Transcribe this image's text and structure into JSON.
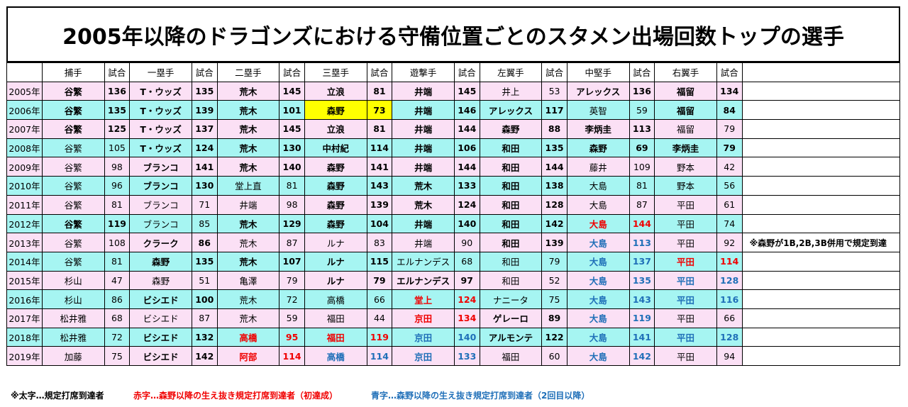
{
  "title": "2005年以降のドラゴンズにおける守備位置ごとのスタメン出場回数トップの選手",
  "headers": [
    "",
    "捕手",
    "試合",
    "一塁手",
    "試合",
    "二塁手",
    "試合",
    "三塁手",
    "試合",
    "遊撃手",
    "試合",
    "左翼手",
    "試合",
    "中堅手",
    "試合",
    "右翼手",
    "試合",
    ""
  ],
  "rows": [
    {
      "bg": "pink",
      "cells": [
        {
          "t": "2005年"
        },
        {
          "t": "谷繁",
          "b": true
        },
        {
          "t": "136",
          "b": true
        },
        {
          "t": "T・ウッズ",
          "b": true
        },
        {
          "t": "135",
          "b": true
        },
        {
          "t": "荒木",
          "b": true
        },
        {
          "t": "145",
          "b": true
        },
        {
          "t": "立浪",
          "b": true
        },
        {
          "t": "81",
          "b": true
        },
        {
          "t": "井端",
          "b": true
        },
        {
          "t": "145",
          "b": true
        },
        {
          "t": "井上"
        },
        {
          "t": "53"
        },
        {
          "t": "アレックス",
          "b": true
        },
        {
          "t": "136",
          "b": true
        },
        {
          "t": "福留",
          "b": true
        },
        {
          "t": "134",
          "b": true
        },
        {
          "t": ""
        }
      ]
    },
    {
      "bg": "cyan",
      "cells": [
        {
          "t": "2006年"
        },
        {
          "t": "谷繁",
          "b": true
        },
        {
          "t": "135",
          "b": true
        },
        {
          "t": "T・ウッズ",
          "b": true
        },
        {
          "t": "139",
          "b": true
        },
        {
          "t": "荒木",
          "b": true
        },
        {
          "t": "101",
          "b": true
        },
        {
          "t": "森野",
          "b": true,
          "hl": true
        },
        {
          "t": "73",
          "b": true,
          "hl": true
        },
        {
          "t": "井端",
          "b": true
        },
        {
          "t": "146",
          "b": true
        },
        {
          "t": "アレックス",
          "b": true
        },
        {
          "t": "117",
          "b": true
        },
        {
          "t": "英智"
        },
        {
          "t": "59"
        },
        {
          "t": "福留",
          "b": true
        },
        {
          "t": "84",
          "b": true
        },
        {
          "t": ""
        }
      ]
    },
    {
      "bg": "pink",
      "cells": [
        {
          "t": "2007年"
        },
        {
          "t": "谷繁",
          "b": true
        },
        {
          "t": "125",
          "b": true
        },
        {
          "t": "T・ウッズ",
          "b": true
        },
        {
          "t": "137",
          "b": true
        },
        {
          "t": "荒木",
          "b": true
        },
        {
          "t": "145",
          "b": true
        },
        {
          "t": "立浪",
          "b": true
        },
        {
          "t": "81",
          "b": true
        },
        {
          "t": "井端",
          "b": true
        },
        {
          "t": "144",
          "b": true
        },
        {
          "t": "森野",
          "b": true
        },
        {
          "t": "88",
          "b": true
        },
        {
          "t": "李炳圭",
          "b": true
        },
        {
          "t": "113",
          "b": true
        },
        {
          "t": "福留"
        },
        {
          "t": "79"
        },
        {
          "t": ""
        }
      ]
    },
    {
      "bg": "cyan",
      "cells": [
        {
          "t": "2008年"
        },
        {
          "t": "谷繁"
        },
        {
          "t": "105"
        },
        {
          "t": "T・ウッズ",
          "b": true
        },
        {
          "t": "124",
          "b": true
        },
        {
          "t": "荒木",
          "b": true
        },
        {
          "t": "130",
          "b": true
        },
        {
          "t": "中村紀",
          "b": true
        },
        {
          "t": "114",
          "b": true
        },
        {
          "t": "井端",
          "b": true
        },
        {
          "t": "106",
          "b": true
        },
        {
          "t": "和田",
          "b": true
        },
        {
          "t": "135",
          "b": true
        },
        {
          "t": "森野",
          "b": true
        },
        {
          "t": "69",
          "b": true
        },
        {
          "t": "李炳圭",
          "b": true
        },
        {
          "t": "79",
          "b": true
        },
        {
          "t": ""
        }
      ]
    },
    {
      "bg": "pink",
      "cells": [
        {
          "t": "2009年"
        },
        {
          "t": "谷繁"
        },
        {
          "t": "98"
        },
        {
          "t": "ブランコ",
          "b": true
        },
        {
          "t": "141",
          "b": true
        },
        {
          "t": "荒木",
          "b": true
        },
        {
          "t": "140",
          "b": true
        },
        {
          "t": "森野",
          "b": true
        },
        {
          "t": "141",
          "b": true
        },
        {
          "t": "井端",
          "b": true
        },
        {
          "t": "144",
          "b": true
        },
        {
          "t": "和田",
          "b": true
        },
        {
          "t": "144",
          "b": true
        },
        {
          "t": "藤井"
        },
        {
          "t": "109"
        },
        {
          "t": "野本"
        },
        {
          "t": "42"
        },
        {
          "t": ""
        }
      ]
    },
    {
      "bg": "cyan",
      "cells": [
        {
          "t": "2010年"
        },
        {
          "t": "谷繁"
        },
        {
          "t": "96"
        },
        {
          "t": "ブランコ",
          "b": true
        },
        {
          "t": "130",
          "b": true
        },
        {
          "t": "堂上直"
        },
        {
          "t": "81"
        },
        {
          "t": "森野",
          "b": true
        },
        {
          "t": "143",
          "b": true
        },
        {
          "t": "荒木",
          "b": true
        },
        {
          "t": "133",
          "b": true
        },
        {
          "t": "和田",
          "b": true
        },
        {
          "t": "138",
          "b": true
        },
        {
          "t": "大島"
        },
        {
          "t": "81"
        },
        {
          "t": "野本"
        },
        {
          "t": "56"
        },
        {
          "t": ""
        }
      ]
    },
    {
      "bg": "pink",
      "cells": [
        {
          "t": "2011年"
        },
        {
          "t": "谷繁"
        },
        {
          "t": "81"
        },
        {
          "t": "ブランコ"
        },
        {
          "t": "71"
        },
        {
          "t": "井端"
        },
        {
          "t": "98"
        },
        {
          "t": "森野",
          "b": true
        },
        {
          "t": "139",
          "b": true
        },
        {
          "t": "荒木",
          "b": true
        },
        {
          "t": "124",
          "b": true
        },
        {
          "t": "和田",
          "b": true
        },
        {
          "t": "128",
          "b": true
        },
        {
          "t": "大島"
        },
        {
          "t": "87"
        },
        {
          "t": "平田"
        },
        {
          "t": "61"
        },
        {
          "t": ""
        }
      ]
    },
    {
      "bg": "cyan",
      "cells": [
        {
          "t": "2012年"
        },
        {
          "t": "谷繁",
          "b": true
        },
        {
          "t": "119",
          "b": true
        },
        {
          "t": "ブランコ"
        },
        {
          "t": "85"
        },
        {
          "t": "荒木",
          "b": true
        },
        {
          "t": "129",
          "b": true
        },
        {
          "t": "森野",
          "b": true
        },
        {
          "t": "104",
          "b": true
        },
        {
          "t": "井端",
          "b": true
        },
        {
          "t": "140",
          "b": true
        },
        {
          "t": "和田",
          "b": true
        },
        {
          "t": "142",
          "b": true
        },
        {
          "t": "大島",
          "b": true,
          "c": "red"
        },
        {
          "t": "144",
          "b": true,
          "c": "red"
        },
        {
          "t": "平田"
        },
        {
          "t": "74"
        },
        {
          "t": ""
        }
      ]
    },
    {
      "bg": "pink",
      "cells": [
        {
          "t": "2013年"
        },
        {
          "t": "谷繁"
        },
        {
          "t": "108"
        },
        {
          "t": "クラーク",
          "b": true
        },
        {
          "t": "86",
          "b": true
        },
        {
          "t": "荒木"
        },
        {
          "t": "87"
        },
        {
          "t": "ルナ"
        },
        {
          "t": "83"
        },
        {
          "t": "井端"
        },
        {
          "t": "90"
        },
        {
          "t": "和田",
          "b": true
        },
        {
          "t": "139",
          "b": true
        },
        {
          "t": "大島",
          "b": true,
          "c": "blue"
        },
        {
          "t": "113",
          "b": true,
          "c": "blue"
        },
        {
          "t": "平田"
        },
        {
          "t": "92"
        },
        {
          "t": "※森野が1B,2B,3B併用で規定到達",
          "note": true
        }
      ]
    },
    {
      "bg": "cyan",
      "cells": [
        {
          "t": "2014年"
        },
        {
          "t": "谷繁"
        },
        {
          "t": "81"
        },
        {
          "t": "森野",
          "b": true
        },
        {
          "t": "135",
          "b": true
        },
        {
          "t": "荒木",
          "b": true
        },
        {
          "t": "107",
          "b": true
        },
        {
          "t": "ルナ",
          "b": true
        },
        {
          "t": "115",
          "b": true
        },
        {
          "t": "エルナンデス"
        },
        {
          "t": "68"
        },
        {
          "t": "和田"
        },
        {
          "t": "79"
        },
        {
          "t": "大島",
          "b": true,
          "c": "blue"
        },
        {
          "t": "137",
          "b": true,
          "c": "blue"
        },
        {
          "t": "平田",
          "b": true,
          "c": "red"
        },
        {
          "t": "114",
          "b": true,
          "c": "red"
        },
        {
          "t": ""
        }
      ]
    },
    {
      "bg": "pink",
      "cells": [
        {
          "t": "2015年"
        },
        {
          "t": "杉山"
        },
        {
          "t": "47"
        },
        {
          "t": "森野"
        },
        {
          "t": "51"
        },
        {
          "t": "亀澤"
        },
        {
          "t": "79"
        },
        {
          "t": "ルナ",
          "b": true
        },
        {
          "t": "79",
          "b": true
        },
        {
          "t": "エルナンデス",
          "b": true
        },
        {
          "t": "97",
          "b": true
        },
        {
          "t": "和田"
        },
        {
          "t": "52"
        },
        {
          "t": "大島",
          "b": true,
          "c": "blue"
        },
        {
          "t": "135",
          "b": true,
          "c": "blue"
        },
        {
          "t": "平田",
          "b": true,
          "c": "blue"
        },
        {
          "t": "128",
          "b": true,
          "c": "blue"
        },
        {
          "t": ""
        }
      ]
    },
    {
      "bg": "cyan",
      "cells": [
        {
          "t": "2016年"
        },
        {
          "t": "杉山"
        },
        {
          "t": "86"
        },
        {
          "t": "ビシエド",
          "b": true
        },
        {
          "t": "100",
          "b": true
        },
        {
          "t": "荒木"
        },
        {
          "t": "72"
        },
        {
          "t": "高橋"
        },
        {
          "t": "66"
        },
        {
          "t": "堂上",
          "b": true,
          "c": "red"
        },
        {
          "t": "124",
          "b": true,
          "c": "red"
        },
        {
          "t": "ナニータ"
        },
        {
          "t": "75"
        },
        {
          "t": "大島",
          "b": true,
          "c": "blue"
        },
        {
          "t": "143",
          "b": true,
          "c": "blue"
        },
        {
          "t": "平田",
          "b": true,
          "c": "blue"
        },
        {
          "t": "116",
          "b": true,
          "c": "blue"
        },
        {
          "t": ""
        }
      ]
    },
    {
      "bg": "pink",
      "cells": [
        {
          "t": "2017年"
        },
        {
          "t": "松井雅"
        },
        {
          "t": "68"
        },
        {
          "t": "ビシエド"
        },
        {
          "t": "87"
        },
        {
          "t": "荒木"
        },
        {
          "t": "59"
        },
        {
          "t": "福田"
        },
        {
          "t": "44"
        },
        {
          "t": "京田",
          "b": true,
          "c": "red"
        },
        {
          "t": "134",
          "b": true,
          "c": "red"
        },
        {
          "t": "ゲレーロ",
          "b": true
        },
        {
          "t": "89",
          "b": true
        },
        {
          "t": "大島",
          "b": true,
          "c": "blue"
        },
        {
          "t": "119",
          "b": true,
          "c": "blue"
        },
        {
          "t": "平田"
        },
        {
          "t": "66"
        },
        {
          "t": ""
        }
      ]
    },
    {
      "bg": "cyan",
      "cells": [
        {
          "t": "2018年"
        },
        {
          "t": "松井雅"
        },
        {
          "t": "72"
        },
        {
          "t": "ビシエド",
          "b": true
        },
        {
          "t": "132",
          "b": true
        },
        {
          "t": "高橋",
          "b": true,
          "c": "red"
        },
        {
          "t": "95",
          "b": true,
          "c": "red"
        },
        {
          "t": "福田",
          "b": true,
          "c": "red"
        },
        {
          "t": "119",
          "b": true,
          "c": "red"
        },
        {
          "t": "京田",
          "b": true,
          "c": "blue"
        },
        {
          "t": "140",
          "b": true,
          "c": "blue"
        },
        {
          "t": "アルモンテ",
          "b": true
        },
        {
          "t": "122",
          "b": true
        },
        {
          "t": "大島",
          "b": true,
          "c": "blue"
        },
        {
          "t": "141",
          "b": true,
          "c": "blue"
        },
        {
          "t": "平田",
          "b": true,
          "c": "blue"
        },
        {
          "t": "128",
          "b": true,
          "c": "blue"
        },
        {
          "t": ""
        }
      ]
    },
    {
      "bg": "pink",
      "cells": [
        {
          "t": "2019年"
        },
        {
          "t": "加藤"
        },
        {
          "t": "75"
        },
        {
          "t": "ビシエド",
          "b": true
        },
        {
          "t": "142",
          "b": true
        },
        {
          "t": "阿部",
          "b": true,
          "c": "red"
        },
        {
          "t": "114",
          "b": true,
          "c": "red"
        },
        {
          "t": "高橋",
          "b": true,
          "c": "blue"
        },
        {
          "t": "114",
          "b": true,
          "c": "blue"
        },
        {
          "t": "京田",
          "b": true,
          "c": "blue"
        },
        {
          "t": "133",
          "b": true,
          "c": "blue"
        },
        {
          "t": "福田"
        },
        {
          "t": "60"
        },
        {
          "t": "大島",
          "b": true,
          "c": "blue"
        },
        {
          "t": "142",
          "b": true,
          "c": "blue"
        },
        {
          "t": "平田"
        },
        {
          "t": "94"
        },
        {
          "t": ""
        }
      ]
    }
  ],
  "legend": {
    "bold": "※太字…規定打席到達者",
    "red": "赤字…森野以降の生え抜き規定打席到達者（初達成）",
    "blue": "青字…森野以降の生え抜き規定打席到達者（2回目以降）"
  },
  "colors": {
    "pink_row": "#fbe0f5",
    "cyan_row": "#a6f5f2",
    "red_text": "#f00000",
    "blue_text": "#1f6fb8",
    "highlight": "#ffff00"
  }
}
